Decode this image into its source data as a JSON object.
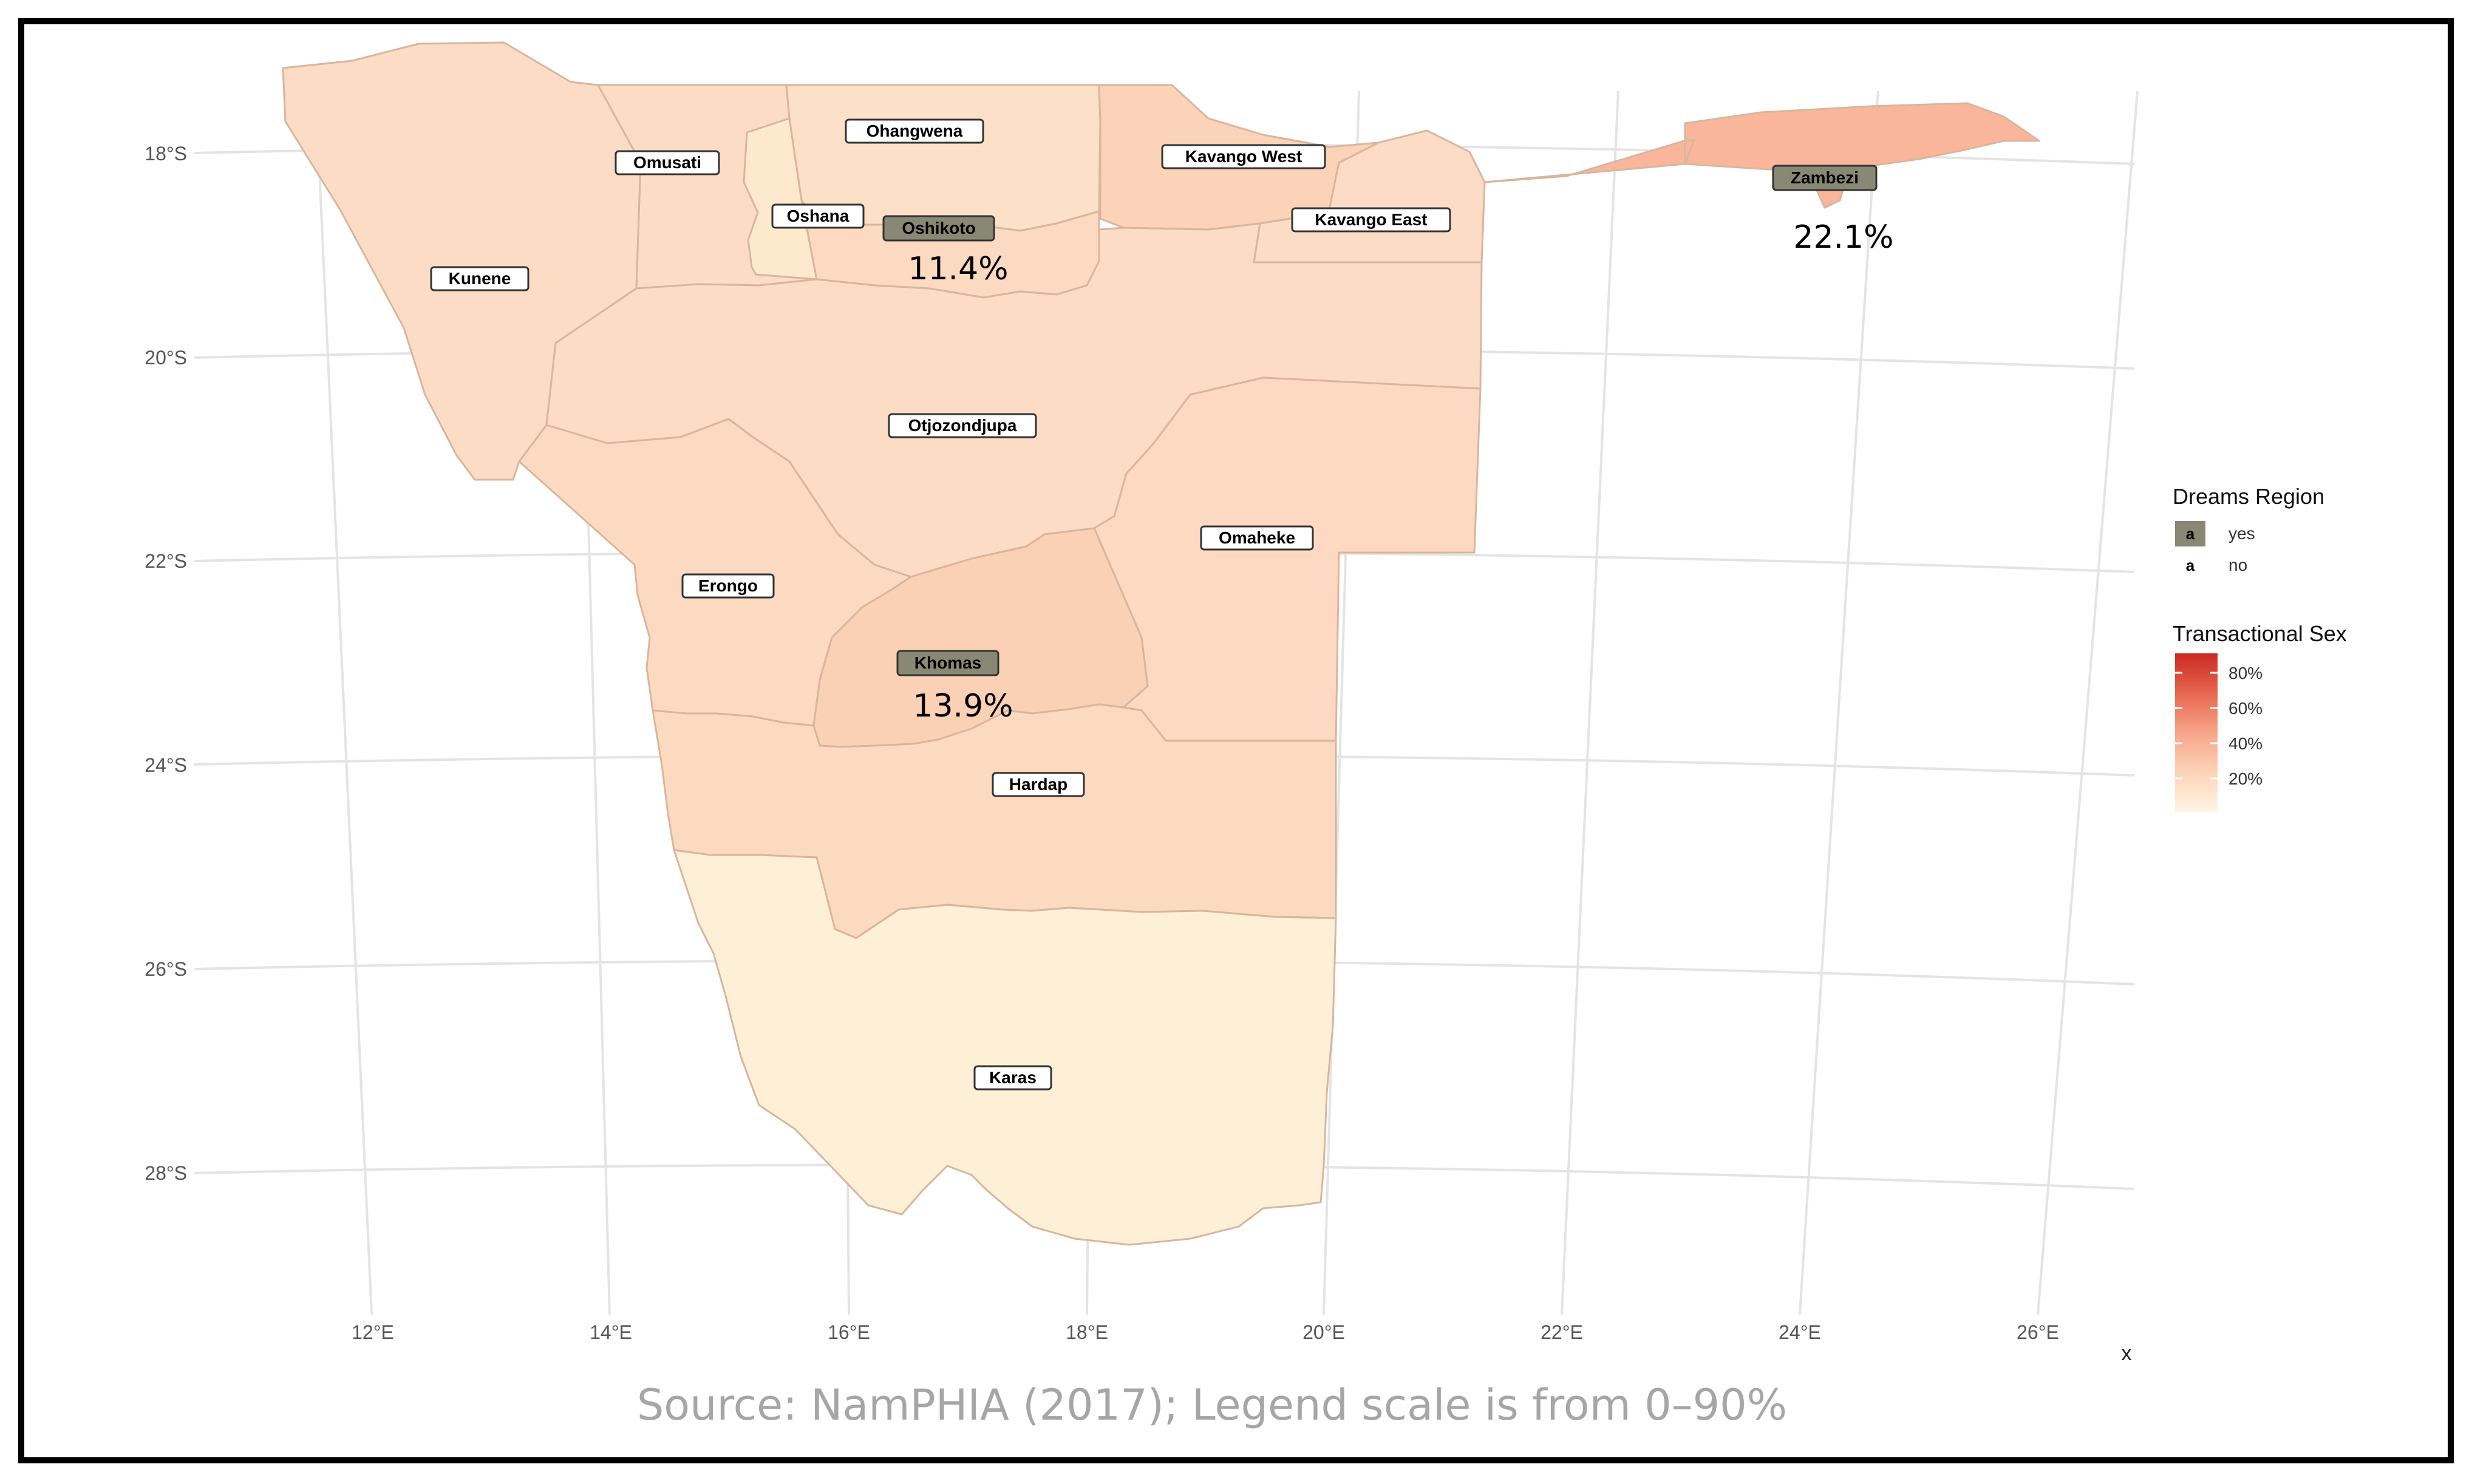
{
  "map": {
    "x_axis_title": "x",
    "lat_labels": [
      "18°S",
      "20°S",
      "22°S",
      "24°S",
      "26°S",
      "28°S"
    ],
    "lon_labels": [
      "12°E",
      "14°E",
      "16°E",
      "18°E",
      "20°E",
      "22°E",
      "24°E",
      "26°E"
    ]
  },
  "regions": [
    {
      "name": "Kunene",
      "dreams": false,
      "fill": "#fcdcc4"
    },
    {
      "name": "Omusati",
      "dreams": false,
      "fill": "#fcdcc4"
    },
    {
      "name": "Oshana",
      "dreams": false,
      "fill": "#fdeacd"
    },
    {
      "name": "Ohangwena",
      "dreams": false,
      "fill": "#fce0c8"
    },
    {
      "name": "Oshikoto",
      "dreams": true,
      "fill": "#fcdac1",
      "value_label": "11.4%"
    },
    {
      "name": "Kavango West",
      "dreams": false,
      "fill": "#fbd3b8"
    },
    {
      "name": "Kavango East",
      "dreams": false,
      "fill": "#fcdcc4"
    },
    {
      "name": "Zambezi",
      "dreams": true,
      "fill": "#f9b69a",
      "value_label": "22.1%"
    },
    {
      "name": "Otjozondjupa",
      "dreams": false,
      "fill": "#fcdcc4"
    },
    {
      "name": "Omaheke",
      "dreams": false,
      "fill": "#fcd9c0"
    },
    {
      "name": "Erongo",
      "dreams": false,
      "fill": "#fcdac1"
    },
    {
      "name": "Khomas",
      "dreams": true,
      "fill": "#fbd1b5",
      "value_label": "13.9%"
    },
    {
      "name": "Hardap",
      "dreams": false,
      "fill": "#fcdabf"
    },
    {
      "name": "Karas",
      "dreams": false,
      "fill": "#fef0d7"
    }
  ],
  "legend": {
    "dreams_title": "Dreams Region",
    "dreams_key_glyph": "a",
    "dreams_items": [
      {
        "label": "yes",
        "fill": "#898875"
      },
      {
        "label": "no",
        "fill": "#ffffff"
      }
    ],
    "color_title": "Transactional Sex",
    "color_ticks": [
      "80%",
      "60%",
      "40%",
      "20%"
    ],
    "color_low": "#fff5e4",
    "color_high": "#cb2a20"
  },
  "source_caption": "Source: NamPHIA (2017); Legend scale is from 0–90%"
}
